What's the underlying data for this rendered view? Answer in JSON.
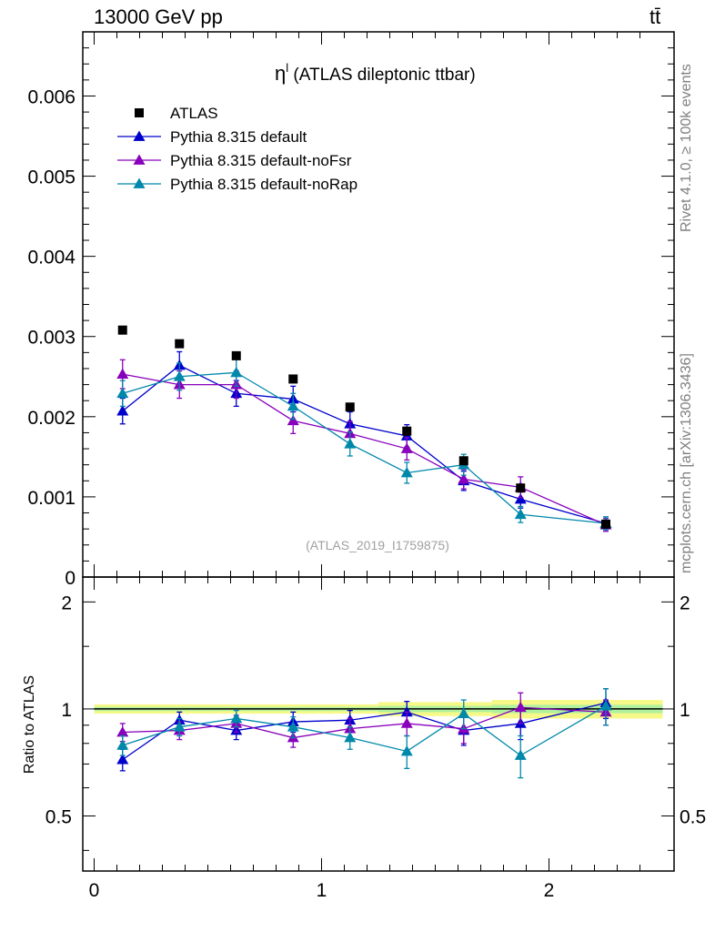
{
  "header": {
    "left": "13000 GeV pp",
    "right": "tt̄"
  },
  "side_labels": {
    "rivet": "Rivet 4.1.0, ≥ 100k events",
    "mcplots": "mcplots.cern.ch [arXiv:1306.3436]"
  },
  "chart_data": {
    "type": "scatter",
    "title": "η",
    "title_sup": "l",
    "title_rest": " (ATLAS dileptonic ttbar)",
    "watermark": "(ATLAS_2019_I1759875)",
    "xlim": [
      -0.05,
      2.55
    ],
    "ylim_main": [
      0,
      0.0068
    ],
    "ylim_ratio": [
      0.35,
      2.35
    ],
    "main_y_ticks": [
      "0.006",
      "0.005",
      "0.004",
      "0.003",
      "0.002",
      "0.001",
      "0"
    ],
    "main_y_tick_values": [
      0.006,
      0.005,
      0.004,
      0.003,
      0.002,
      0.001,
      0
    ],
    "ratio_y_ticks": [
      "2",
      "1",
      "0.5"
    ],
    "ratio_y_tick_values": [
      2,
      1,
      0.5
    ],
    "x_ticks": [
      "0",
      "1",
      "2"
    ],
    "x_tick_values": [
      0,
      1,
      2
    ],
    "ratio_ylabel": "Ratio to ATLAS",
    "x": [
      0.125,
      0.375,
      0.625,
      0.875,
      1.125,
      1.375,
      1.625,
      1.875,
      2.25
    ],
    "x_edges": [
      0,
      0.25,
      0.5,
      0.75,
      1.0,
      1.25,
      1.5,
      1.75,
      2.0,
      2.5
    ],
    "data": {
      "name": "ATLAS",
      "color": "#000000",
      "values": [
        0.00308,
        0.00291,
        0.00276,
        0.00247,
        0.00212,
        0.00182,
        0.00145,
        0.00111,
        0.00066
      ],
      "ratio_band": [
        0.03,
        0.03,
        0.03,
        0.03,
        0.03,
        0.045,
        0.045,
        0.06,
        0.06
      ]
    },
    "series": [
      {
        "name": "Pythia 8.315 default",
        "color": "#0000cc",
        "values": [
          0.00207,
          0.00264,
          0.00229,
          0.00222,
          0.00191,
          0.00176,
          0.0012,
          0.00097,
          0.00067
        ],
        "errors": [
          0.00016,
          0.00017,
          0.00016,
          0.00016,
          0.00015,
          0.00014,
          0.00012,
          0.00011,
          8e-05
        ],
        "ratio": [
          0.72,
          0.93,
          0.87,
          0.92,
          0.93,
          0.98,
          0.87,
          0.91,
          1.04
        ],
        "ratio_errors": [
          0.05,
          0.05,
          0.05,
          0.06,
          0.06,
          0.07,
          0.08,
          0.09,
          0.1
        ]
      },
      {
        "name": "Pythia 8.315 default-noFsr",
        "color": "#8800bb",
        "values": [
          0.00253,
          0.0024,
          0.0024,
          0.00195,
          0.00179,
          0.0016,
          0.00122,
          0.00112,
          0.00065
        ],
        "errors": [
          0.00018,
          0.00017,
          0.00017,
          0.00016,
          0.00015,
          0.00014,
          0.00012,
          0.00013,
          8e-05
        ],
        "ratio": [
          0.86,
          0.87,
          0.91,
          0.83,
          0.88,
          0.91,
          0.88,
          1.01,
          0.98
        ],
        "ratio_errors": [
          0.05,
          0.05,
          0.05,
          0.05,
          0.06,
          0.07,
          0.08,
          0.1,
          0.08
        ]
      },
      {
        "name": "Pythia 8.315 default-noRap",
        "color": "#0088aa",
        "values": [
          0.00229,
          0.0025,
          0.00255,
          0.00213,
          0.00166,
          0.0013,
          0.0014,
          0.00078,
          0.00067
        ],
        "errors": [
          0.00016,
          0.00017,
          0.00017,
          0.00016,
          0.00015,
          0.00013,
          0.00013,
          0.0001,
          8e-05
        ],
        "ratio": [
          0.79,
          0.89,
          0.94,
          0.89,
          0.83,
          0.76,
          0.97,
          0.74,
          1.02
        ],
        "ratio_errors": [
          0.05,
          0.05,
          0.05,
          0.06,
          0.06,
          0.08,
          0.09,
          0.1,
          0.12
        ]
      }
    ],
    "legend_position": "top-left"
  }
}
